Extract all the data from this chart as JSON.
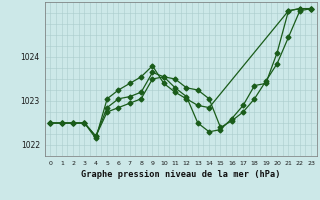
{
  "xlabel": "Graphe pression niveau de la mer (hPa)",
  "x_ticks": [
    0,
    1,
    2,
    3,
    4,
    5,
    6,
    7,
    8,
    9,
    10,
    11,
    12,
    13,
    14,
    15,
    16,
    17,
    18,
    19,
    20,
    21,
    22,
    23
  ],
  "ylim": [
    1021.75,
    1025.25
  ],
  "yticks": [
    1022,
    1023,
    1024
  ],
  "background_color": "#cce8e8",
  "grid_color": "#aacccc",
  "line_color": "#1a5c1a",
  "line1_x": [
    0,
    1,
    2,
    3,
    4,
    5,
    6,
    7,
    8,
    9,
    10,
    11,
    12,
    13,
    14,
    15,
    16,
    17,
    18,
    19,
    20,
    21,
    22,
    23
  ],
  "line1_y": [
    1022.5,
    1022.5,
    1022.5,
    1022.5,
    1022.2,
    1022.75,
    1022.85,
    1022.95,
    1023.05,
    1023.5,
    1023.55,
    1023.5,
    1023.3,
    1023.25,
    1023.05,
    1022.4,
    1022.55,
    1022.75,
    1023.05,
    1023.45,
    1023.85,
    1024.45,
    1025.05,
    1025.1
  ],
  "line2_x": [
    0,
    1,
    2,
    3,
    4,
    5,
    6,
    7,
    8,
    9,
    10,
    11,
    12,
    13,
    14,
    15,
    16,
    17,
    18,
    19,
    20,
    21,
    22,
    23
  ],
  "line2_y": [
    1022.5,
    1022.5,
    1022.5,
    1022.5,
    1022.2,
    1022.85,
    1023.05,
    1023.1,
    1023.2,
    1023.65,
    1023.55,
    1023.3,
    1023.1,
    1022.5,
    1022.3,
    1022.35,
    1022.6,
    1022.9,
    1023.35,
    1023.4,
    1024.1,
    1025.05,
    1025.1,
    1025.1
  ],
  "line3_x": [
    0,
    1,
    2,
    3,
    4,
    5,
    6,
    7,
    8,
    9,
    10,
    11,
    12,
    13,
    14,
    21,
    22,
    23
  ],
  "line3_y": [
    1022.5,
    1022.5,
    1022.5,
    1022.5,
    1022.15,
    1023.05,
    1023.25,
    1023.4,
    1023.55,
    1023.8,
    1023.4,
    1023.2,
    1023.05,
    1022.9,
    1022.85,
    1025.05,
    1025.1,
    1025.1
  ],
  "marker_size": 2.5,
  "linewidth": 0.9
}
